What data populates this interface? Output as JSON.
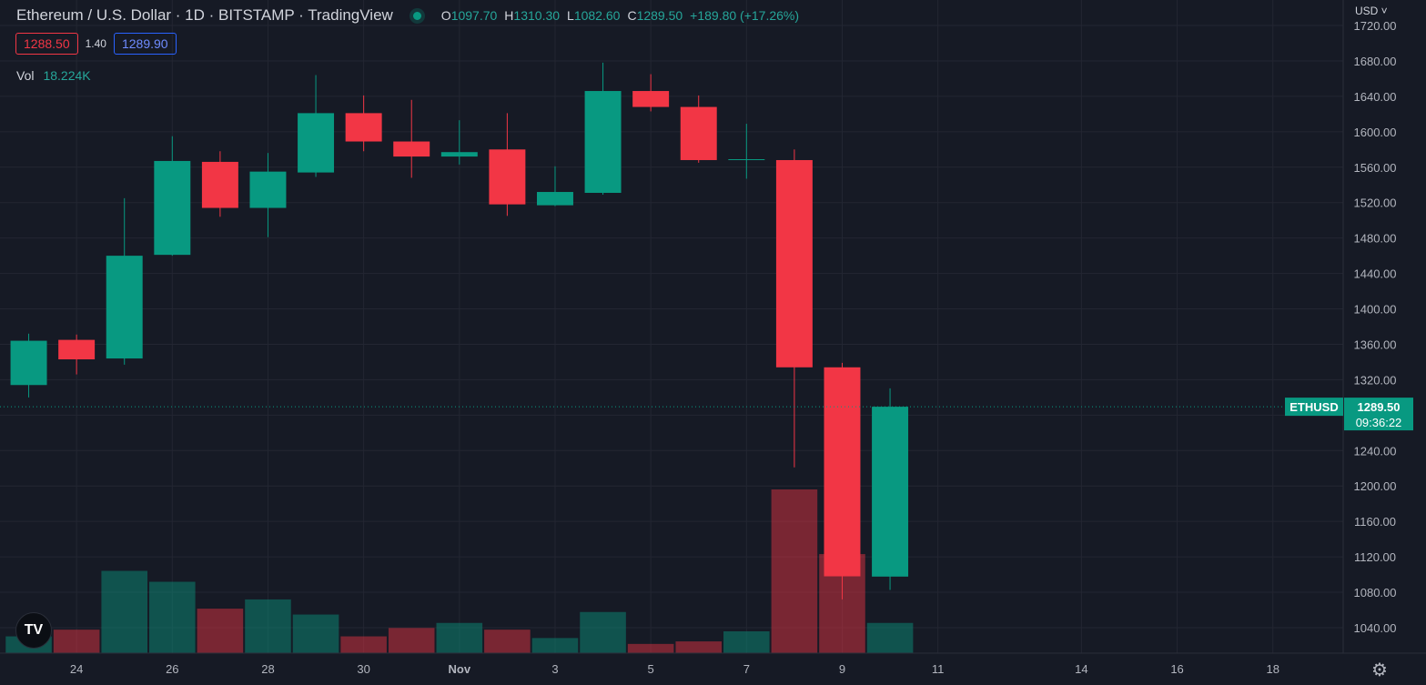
{
  "header": {
    "title": "Ethereum / U.S. Dollar · 1D · BITSTAMP · TradingView",
    "ohlc": {
      "o_label": "O",
      "o": "1097.70",
      "h_label": "H",
      "h": "1310.30",
      "l_label": "L",
      "l": "1082.60",
      "c_label": "C",
      "c": "1289.50",
      "change": "+189.80 (+17.26%)"
    },
    "bid": "1288.50",
    "spread": "1.40",
    "ask": "1289.90",
    "vol_label": "Vol",
    "vol_value": "18.224K"
  },
  "currency": "USD",
  "price_tag": {
    "symbol": "ETHUSD",
    "price": "1289.50",
    "countdown": "09:36:22"
  },
  "colors": {
    "up": "#089981",
    "down": "#f23645",
    "background": "#161a25",
    "grid": "#232632"
  },
  "icons": {
    "logo": "tradingview-logo-icon",
    "settings": "gear-icon"
  },
  "logo_text": "TV",
  "chart_data": {
    "type": "candlestick",
    "ylim": [
      1020,
      1730
    ],
    "yticks": [
      1040,
      1080,
      1120,
      1160,
      1200,
      1240,
      1280,
      1320,
      1360,
      1400,
      1440,
      1480,
      1520,
      1560,
      1600,
      1640,
      1680,
      1720
    ],
    "ytick_labels": [
      "1040.00",
      "1080.00",
      "1120.00",
      "1160.00",
      "1200.00",
      "1240.00",
      "",
      "1320.00",
      "1360.00",
      "1400.00",
      "1440.00",
      "1480.00",
      "1520.00",
      "1560.00",
      "1600.00",
      "1640.00",
      "1680.00",
      "1720.00"
    ],
    "xticks": [
      {
        "d": 24,
        "label": "24"
      },
      {
        "d": 26,
        "label": "26"
      },
      {
        "d": 28,
        "label": "28"
      },
      {
        "d": 30,
        "label": "30"
      },
      {
        "d": 32,
        "label": "Nov"
      },
      {
        "d": 34,
        "label": "3"
      },
      {
        "d": 36,
        "label": "5"
      },
      {
        "d": 38,
        "label": "7"
      },
      {
        "d": 40,
        "label": "9"
      },
      {
        "d": 42,
        "label": "11"
      },
      {
        "d": 45,
        "label": "14"
      },
      {
        "d": 47,
        "label": "16"
      },
      {
        "d": 49,
        "label": "18"
      }
    ],
    "x_range": [
      22.4,
      52.2
    ],
    "last_price": 1289.5,
    "vol_max": 195,
    "candles": [
      {
        "d": 23,
        "o": 1314,
        "h": 1372,
        "l": 1300,
        "c": 1364,
        "v": 20
      },
      {
        "d": 24,
        "o": 1365,
        "h": 1371,
        "l": 1326,
        "c": 1343,
        "v": 28
      },
      {
        "d": 25,
        "o": 1344,
        "h": 1525,
        "l": 1337,
        "c": 1460,
        "v": 98
      },
      {
        "d": 26,
        "o": 1461,
        "h": 1595,
        "l": 1460,
        "c": 1567,
        "v": 85
      },
      {
        "d": 27,
        "o": 1566,
        "h": 1578,
        "l": 1504,
        "c": 1514,
        "v": 53
      },
      {
        "d": 28,
        "o": 1514,
        "h": 1576,
        "l": 1481,
        "c": 1555,
        "v": 64
      },
      {
        "d": 29,
        "o": 1554,
        "h": 1664,
        "l": 1549,
        "c": 1621,
        "v": 46
      },
      {
        "d": 30,
        "o": 1621,
        "h": 1641,
        "l": 1578,
        "c": 1589,
        "v": 20
      },
      {
        "d": 31,
        "o": 1589,
        "h": 1636,
        "l": 1548,
        "c": 1572,
        "v": 30
      },
      {
        "d": 32,
        "o": 1572,
        "h": 1613,
        "l": 1563,
        "c": 1577,
        "v": 36
      },
      {
        "d": 33,
        "o": 1580,
        "h": 1621,
        "l": 1505,
        "c": 1518,
        "v": 28
      },
      {
        "d": 34,
        "o": 1517,
        "h": 1561,
        "l": 1516,
        "c": 1532,
        "v": 18
      },
      {
        "d": 35,
        "o": 1531,
        "h": 1678,
        "l": 1529,
        "c": 1646,
        "v": 49
      },
      {
        "d": 36,
        "o": 1646,
        "h": 1665,
        "l": 1623,
        "c": 1628,
        "v": 11
      },
      {
        "d": 37,
        "o": 1628,
        "h": 1641,
        "l": 1565,
        "c": 1568,
        "v": 14
      },
      {
        "d": 38,
        "o": 1568,
        "h": 1609,
        "l": 1547,
        "c": 1569,
        "v": 26
      },
      {
        "d": 39,
        "o": 1568,
        "h": 1580,
        "l": 1221,
        "c": 1334,
        "v": 195
      },
      {
        "d": 40,
        "o": 1334,
        "h": 1339,
        "l": 1072,
        "c": 1098,
        "v": 118
      },
      {
        "d": 41,
        "o": 1097.7,
        "h": 1310.3,
        "l": 1082.6,
        "c": 1289.5,
        "v": 36
      }
    ]
  }
}
